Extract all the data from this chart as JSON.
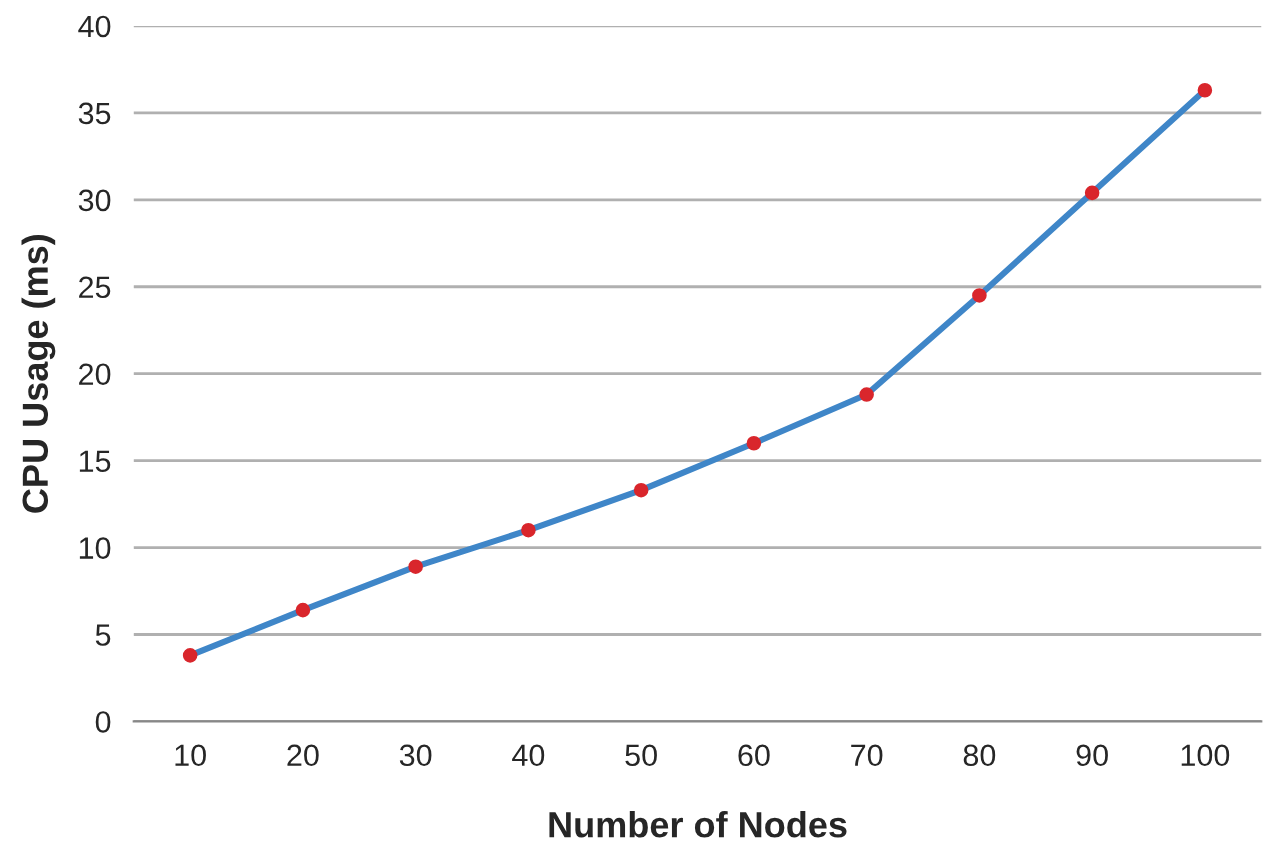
{
  "chart_data": {
    "type": "line",
    "xlabel": "Number of Nodes",
    "ylabel": "CPU Usage (ms)",
    "categories": [
      "10",
      "20",
      "30",
      "40",
      "50",
      "60",
      "70",
      "80",
      "90",
      "100"
    ],
    "series": [
      {
        "color": "#3f86c8",
        "values": [
          3.8,
          6.4,
          8.9,
          11.0,
          13.3,
          16.0,
          18.8,
          24.5,
          30.4,
          36.3
        ]
      }
    ],
    "ylim": [
      0,
      40
    ],
    "yticks": [
      0,
      5,
      10,
      15,
      20,
      25,
      30,
      35,
      40
    ],
    "grid": "y",
    "marker": "circle"
  }
}
